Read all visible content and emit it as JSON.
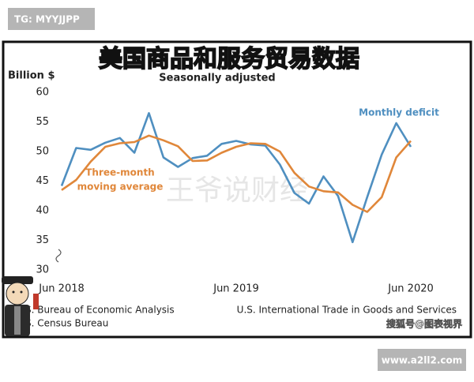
{
  "overlay_label": "TG: MYYJJPP",
  "site_label": "www.a2ll2.com",
  "watermarks": [
    "王爷说财经",
    "搜狐号@图表视界"
  ],
  "chart_data": {
    "type": "line",
    "title": "美国商品和服务贸易数据",
    "subtitle": "Seasonally adjusted",
    "y_axis_label": "Billion $",
    "categories": [
      "Jun 2018",
      null,
      null,
      null,
      null,
      null,
      null,
      null,
      null,
      null,
      null,
      null,
      "Jun 2019",
      null,
      null,
      null,
      null,
      null,
      null,
      null,
      null,
      null,
      null,
      null,
      "Jun 2020"
    ],
    "series": [
      {
        "name": "Monthly deficit",
        "color": "#4f8fc0",
        "values": [
          44.2,
          50.6,
          50.3,
          51.5,
          52.3,
          49.8,
          56.5,
          49.0,
          47.4,
          48.9,
          49.3,
          51.3,
          51.8,
          51.2,
          51.0,
          47.8,
          43.0,
          41.2,
          45.8,
          42.5,
          34.7,
          42.3,
          49.5,
          54.8,
          50.8
        ]
      },
      {
        "name": [
          "Three-month",
          "moving average"
        ],
        "color": "#e0873a",
        "values": [
          43.5,
          45.2,
          48.3,
          50.8,
          51.4,
          51.6,
          52.7,
          51.9,
          50.9,
          48.4,
          48.5,
          49.8,
          50.8,
          51.4,
          51.3,
          50.0,
          46.4,
          44.1,
          43.3,
          43.1,
          41.0,
          39.8,
          42.3,
          49.0,
          51.8
        ]
      }
    ],
    "ylim": [
      30,
      60
    ],
    "yticks": [
      30,
      35,
      40,
      45,
      50,
      55,
      60
    ],
    "sources": [
      "S. Bureau of Economic Analysis",
      "S. Census Bureau",
      "U.S. International Trade in Goods and Services"
    ]
  }
}
